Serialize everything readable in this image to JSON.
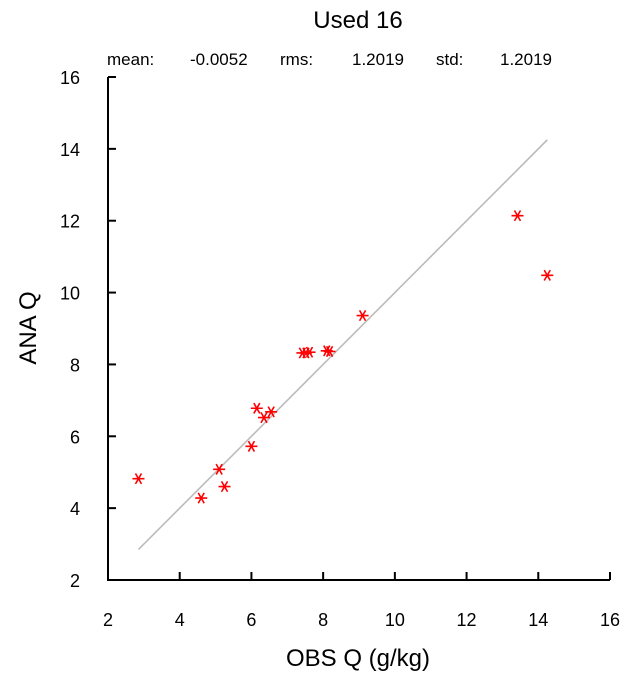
{
  "chart_data": {
    "type": "scatter",
    "title": "Used  16",
    "stats": {
      "mean_label": "mean:",
      "mean_value": "-0.0052",
      "rms_label": "rms:",
      "rms_value": "1.2019",
      "std_label": "std:",
      "std_value": "1.2019"
    },
    "xlabel": "OBS Q  (g/kg)",
    "ylabel": "ANA Q",
    "xlim": [
      2,
      16
    ],
    "ylim": [
      2,
      16
    ],
    "xticks": [
      "2",
      "4",
      "6",
      "8",
      "10",
      "12",
      "14",
      "16"
    ],
    "yticks": [
      "2",
      "4",
      "6",
      "8",
      "10",
      "12",
      "14",
      "16"
    ],
    "marker": "asterisk",
    "marker_color": "#ff0000",
    "reference_line": {
      "from": [
        2.85,
        2.85
      ],
      "to": [
        14.25,
        14.25
      ],
      "color": "#bbbbbb"
    },
    "points": [
      {
        "x": 2.85,
        "y": 4.82
      },
      {
        "x": 4.6,
        "y": 4.28
      },
      {
        "x": 5.1,
        "y": 5.08
      },
      {
        "x": 5.25,
        "y": 4.6
      },
      {
        "x": 6.0,
        "y": 5.72
      },
      {
        "x": 6.15,
        "y": 6.78
      },
      {
        "x": 6.35,
        "y": 6.52
      },
      {
        "x": 6.55,
        "y": 6.68
      },
      {
        "x": 7.42,
        "y": 8.32
      },
      {
        "x": 7.52,
        "y": 8.32
      },
      {
        "x": 7.62,
        "y": 8.34
      },
      {
        "x": 8.1,
        "y": 8.38
      },
      {
        "x": 8.18,
        "y": 8.36
      },
      {
        "x": 9.1,
        "y": 9.36
      },
      {
        "x": 13.42,
        "y": 12.14
      },
      {
        "x": 14.25,
        "y": 10.48
      }
    ]
  }
}
